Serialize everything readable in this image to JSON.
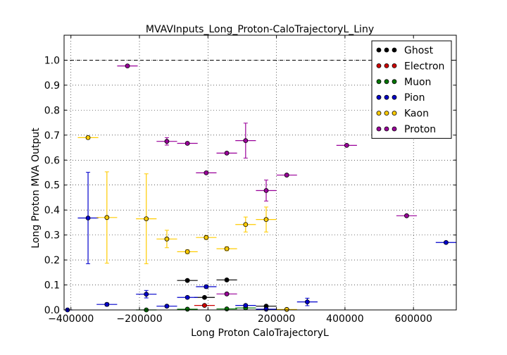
{
  "chart_data": {
    "type": "scatter",
    "title": "MVAVInputs_Long_Proton-CaloTrajectoryL_Liny",
    "xlabel": "Long Proton CaloTrajectoryL",
    "ylabel": "Long Proton MVA Output",
    "xlim": [
      -420000,
      725000
    ],
    "ylim": [
      0.0,
      1.1
    ],
    "x_ticks": [
      -400000,
      -200000,
      0,
      200000,
      400000,
      600000
    ],
    "x_tick_labels": [
      "−400000",
      "−200000",
      "0",
      "200000",
      "400000",
      "600000"
    ],
    "y_ticks": [
      0.0,
      0.1,
      0.2,
      0.3,
      0.4,
      0.5,
      0.6,
      0.7,
      0.8,
      0.9,
      1.0
    ],
    "y_tick_labels": [
      "0.0",
      "0.1",
      "0.2",
      "0.3",
      "0.4",
      "0.5",
      "0.6",
      "0.7",
      "0.8",
      "0.9",
      "1.0"
    ],
    "reference_line_y": 1.0,
    "grid": true,
    "legend_position": "top-right",
    "series": [
      {
        "name": "Ghost",
        "color": "#000000",
        "points": [
          {
            "x": -60000,
            "y": 0.118,
            "xerr": 30000,
            "yerr": 0.004
          },
          {
            "x": -10000,
            "y": 0.05,
            "xerr": 30000,
            "yerr": 0.004
          },
          {
            "x": 55000,
            "y": 0.12,
            "xerr": 30000,
            "yerr": 0.004
          },
          {
            "x": 170000,
            "y": 0.015,
            "xerr": 30000,
            "yerr": 0.003
          }
        ]
      },
      {
        "name": "Electron",
        "color": "#cc0000",
        "points": [
          {
            "x": -10000,
            "y": 0.018,
            "xerr": 30000,
            "yerr": 0.004
          }
        ]
      },
      {
        "name": "Muon",
        "color": "#007700",
        "points": [
          {
            "x": -180000,
            "y": 0.0,
            "xerr": 30000,
            "yerr": 0.002
          },
          {
            "x": -60000,
            "y": 0.003,
            "xerr": 30000,
            "yerr": 0.002
          },
          {
            "x": 55000,
            "y": 0.004,
            "xerr": 30000,
            "yerr": 0.002
          },
          {
            "x": 110000,
            "y": 0.008,
            "xerr": 30000,
            "yerr": 0.002
          }
        ]
      },
      {
        "name": "Pion",
        "color": "#0000cc",
        "points": [
          {
            "x": -410000,
            "y": 0.0,
            "xerr": 15000,
            "yerr": 0.002
          },
          {
            "x": -350000,
            "y": 0.368,
            "xerr": 30000,
            "yerr": 0.183
          },
          {
            "x": -295000,
            "y": 0.022,
            "xerr": 30000,
            "yerr": 0.006
          },
          {
            "x": -180000,
            "y": 0.063,
            "xerr": 30000,
            "yerr": 0.015
          },
          {
            "x": -120000,
            "y": 0.015,
            "xerr": 30000,
            "yerr": 0.004
          },
          {
            "x": -60000,
            "y": 0.05,
            "xerr": 30000,
            "yerr": 0.004
          },
          {
            "x": -5000,
            "y": 0.093,
            "xerr": 30000,
            "yerr": 0.006
          },
          {
            "x": 110000,
            "y": 0.018,
            "xerr": 30000,
            "yerr": 0.004
          },
          {
            "x": 170000,
            "y": 0.003,
            "xerr": 30000,
            "yerr": 0.002
          },
          {
            "x": 290000,
            "y": 0.032,
            "xerr": 30000,
            "yerr": 0.015
          },
          {
            "x": 695000,
            "y": 0.27,
            "xerr": 30000,
            "yerr": 0.004
          }
        ]
      },
      {
        "name": "Kaon",
        "color": "#ffcc00",
        "points": [
          {
            "x": -350000,
            "y": 0.69,
            "xerr": 30000,
            "yerr": 0.006
          },
          {
            "x": -295000,
            "y": 0.37,
            "xerr": 30000,
            "yerr": 0.183
          },
          {
            "x": -180000,
            "y": 0.365,
            "xerr": 30000,
            "yerr": 0.18
          },
          {
            "x": -120000,
            "y": 0.284,
            "xerr": 30000,
            "yerr": 0.035
          },
          {
            "x": -60000,
            "y": 0.233,
            "xerr": 30000,
            "yerr": 0.008
          },
          {
            "x": -5000,
            "y": 0.29,
            "xerr": 30000,
            "yerr": 0.008
          },
          {
            "x": 55000,
            "y": 0.245,
            "xerr": 30000,
            "yerr": 0.008
          },
          {
            "x": 110000,
            "y": 0.342,
            "xerr": 30000,
            "yerr": 0.03
          },
          {
            "x": 170000,
            "y": 0.362,
            "xerr": 30000,
            "yerr": 0.05
          },
          {
            "x": 230000,
            "y": 0.002,
            "xerr": 30000,
            "yerr": 0.002
          }
        ]
      },
      {
        "name": "Proton",
        "color": "#990099",
        "points": [
          {
            "x": -235000,
            "y": 0.977,
            "xerr": 30000,
            "yerr": 0.004
          },
          {
            "x": -120000,
            "y": 0.675,
            "xerr": 30000,
            "yerr": 0.015
          },
          {
            "x": -60000,
            "y": 0.667,
            "xerr": 30000,
            "yerr": 0.004
          },
          {
            "x": -5000,
            "y": 0.549,
            "xerr": 30000,
            "yerr": 0.004
          },
          {
            "x": 55000,
            "y": 0.064,
            "xerr": 30000,
            "yerr": 0.004
          },
          {
            "x": 55000,
            "y": 0.628,
            "xerr": 30000,
            "yerr": 0.004
          },
          {
            "x": 110000,
            "y": 0.678,
            "xerr": 30000,
            "yerr": 0.07
          },
          {
            "x": 170000,
            "y": 0.478,
            "xerr": 30000,
            "yerr": 0.042
          },
          {
            "x": 230000,
            "y": 0.54,
            "xerr": 30000,
            "yerr": 0.004
          },
          {
            "x": 405000,
            "y": 0.659,
            "xerr": 30000,
            "yerr": 0.004
          },
          {
            "x": 580000,
            "y": 0.377,
            "xerr": 30000,
            "yerr": 0.004
          }
        ]
      }
    ]
  }
}
